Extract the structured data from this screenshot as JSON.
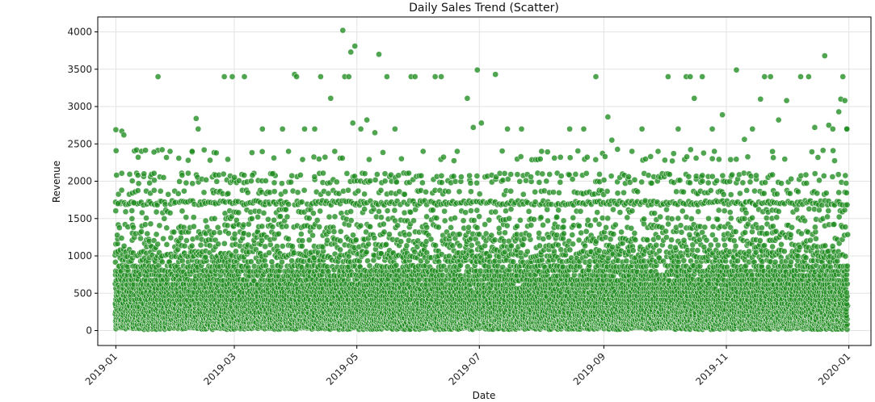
{
  "chart_data": {
    "type": "scatter",
    "title": "Daily Sales Trend (Scatter)",
    "xlabel": "Date",
    "ylabel": "Revenue",
    "x_range": [
      "2018-12-23",
      "2020-01-12"
    ],
    "ylim": [
      -200,
      4200
    ],
    "x_ticks": [
      "2019-01",
      "2019-03",
      "2019-05",
      "2019-07",
      "2019-09",
      "2019-11",
      "2020-01"
    ],
    "y_ticks": [
      0,
      500,
      1000,
      1500,
      2000,
      2500,
      3000,
      3500,
      4000
    ],
    "grid": true,
    "marker_color": "#1f8c1f",
    "marker_edge_color": "#ffffff",
    "points": [
      {
        "x": "2019-01-01",
        "y": 2690
      },
      {
        "x": "2019-01-02",
        "y": 1700
      },
      {
        "x": "2019-01-04",
        "y": 2670
      },
      {
        "x": "2019-01-05",
        "y": 2620
      },
      {
        "x": "2019-01-10",
        "y": 1710
      },
      {
        "x": "2019-01-12",
        "y": 2080
      },
      {
        "x": "2019-01-15",
        "y": 2100
      },
      {
        "x": "2019-01-20",
        "y": 2390
      },
      {
        "x": "2019-01-22",
        "y": 3400
      },
      {
        "x": "2019-01-28",
        "y": 2400
      },
      {
        "x": "2019-02-03",
        "y": 2080
      },
      {
        "x": "2019-02-08",
        "y": 2400
      },
      {
        "x": "2019-02-10",
        "y": 2840
      },
      {
        "x": "2019-02-11",
        "y": 2700
      },
      {
        "x": "2019-02-14",
        "y": 2420
      },
      {
        "x": "2019-02-20",
        "y": 2380
      },
      {
        "x": "2019-02-24",
        "y": 3400
      },
      {
        "x": "2019-02-28",
        "y": 3400
      },
      {
        "x": "2019-03-06",
        "y": 3400
      },
      {
        "x": "2019-03-10",
        "y": 2080
      },
      {
        "x": "2019-03-15",
        "y": 2700
      },
      {
        "x": "2019-03-20",
        "y": 2100
      },
      {
        "x": "2019-03-25",
        "y": 2700
      },
      {
        "x": "2019-03-28",
        "y": 2400
      },
      {
        "x": "2019-03-31",
        "y": 3430
      },
      {
        "x": "2019-04-01",
        "y": 3400
      },
      {
        "x": "2019-04-05",
        "y": 2700
      },
      {
        "x": "2019-04-10",
        "y": 2700
      },
      {
        "x": "2019-04-13",
        "y": 3400
      },
      {
        "x": "2019-04-18",
        "y": 3110
      },
      {
        "x": "2019-04-20",
        "y": 2400
      },
      {
        "x": "2019-04-24",
        "y": 4020
      },
      {
        "x": "2019-04-25",
        "y": 3400
      },
      {
        "x": "2019-04-27",
        "y": 3400
      },
      {
        "x": "2019-04-28",
        "y": 3730
      },
      {
        "x": "2019-04-30",
        "y": 3810
      },
      {
        "x": "2019-04-29",
        "y": 2780
      },
      {
        "x": "2019-05-03",
        "y": 2700
      },
      {
        "x": "2019-05-06",
        "y": 2820
      },
      {
        "x": "2019-05-10",
        "y": 2650
      },
      {
        "x": "2019-05-12",
        "y": 3700
      },
      {
        "x": "2019-05-16",
        "y": 3400
      },
      {
        "x": "2019-05-20",
        "y": 2700
      },
      {
        "x": "2019-05-28",
        "y": 3400
      },
      {
        "x": "2019-05-30",
        "y": 3400
      },
      {
        "x": "2019-06-03",
        "y": 2400
      },
      {
        "x": "2019-06-09",
        "y": 3400
      },
      {
        "x": "2019-06-12",
        "y": 3400
      },
      {
        "x": "2019-06-20",
        "y": 2400
      },
      {
        "x": "2019-06-25",
        "y": 3110
      },
      {
        "x": "2019-06-28",
        "y": 2720
      },
      {
        "x": "2019-06-30",
        "y": 3490
      },
      {
        "x": "2019-07-02",
        "y": 2780
      },
      {
        "x": "2019-07-09",
        "y": 3430
      },
      {
        "x": "2019-07-15",
        "y": 2700
      },
      {
        "x": "2019-07-22",
        "y": 2700
      },
      {
        "x": "2019-08-01",
        "y": 2400
      },
      {
        "x": "2019-08-15",
        "y": 2700
      },
      {
        "x": "2019-08-22",
        "y": 2700
      },
      {
        "x": "2019-08-28",
        "y": 3400
      },
      {
        "x": "2019-09-03",
        "y": 2860
      },
      {
        "x": "2019-09-05",
        "y": 2550
      },
      {
        "x": "2019-09-15",
        "y": 2400
      },
      {
        "x": "2019-09-20",
        "y": 2700
      },
      {
        "x": "2019-09-28",
        "y": 2400
      },
      {
        "x": "2019-10-03",
        "y": 3400
      },
      {
        "x": "2019-10-08",
        "y": 2700
      },
      {
        "x": "2019-10-12",
        "y": 3400
      },
      {
        "x": "2019-10-14",
        "y": 3400
      },
      {
        "x": "2019-10-16",
        "y": 3110
      },
      {
        "x": "2019-10-20",
        "y": 3400
      },
      {
        "x": "2019-10-25",
        "y": 2700
      },
      {
        "x": "2019-10-30",
        "y": 2890
      },
      {
        "x": "2019-11-06",
        "y": 3490
      },
      {
        "x": "2019-11-10",
        "y": 2560
      },
      {
        "x": "2019-11-14",
        "y": 2700
      },
      {
        "x": "2019-11-18",
        "y": 3100
      },
      {
        "x": "2019-11-20",
        "y": 3400
      },
      {
        "x": "2019-11-23",
        "y": 3400
      },
      {
        "x": "2019-11-27",
        "y": 2820
      },
      {
        "x": "2019-12-01",
        "y": 3080
      },
      {
        "x": "2019-12-08",
        "y": 3400
      },
      {
        "x": "2019-12-12",
        "y": 3400
      },
      {
        "x": "2019-12-15",
        "y": 2720
      },
      {
        "x": "2019-12-20",
        "y": 3680
      },
      {
        "x": "2019-12-22",
        "y": 2750
      },
      {
        "x": "2019-12-24",
        "y": 2700
      },
      {
        "x": "2019-12-27",
        "y": 2930
      },
      {
        "x": "2019-12-28",
        "y": 3100
      },
      {
        "x": "2019-12-29",
        "y": 3400
      },
      {
        "x": "2019-12-30",
        "y": 3080
      },
      {
        "x": "2019-12-31",
        "y": 2700
      },
      {
        "x": "2019-12-31",
        "y": 2700
      }
    ],
    "dense_band": {
      "date_start": "2019-01-01",
      "date_end": "2019-12-31",
      "revenue_levels": [
        30,
        60,
        90,
        120,
        150,
        180,
        210,
        250,
        290,
        330,
        370,
        420,
        470,
        520,
        570,
        620,
        680,
        740,
        800,
        860,
        930,
        1000,
        1060,
        1140,
        1220,
        1300,
        1400,
        1500,
        1600,
        1710,
        1850,
        2000,
        2080,
        2300,
        2400
      ],
      "level_density": [
        1,
        1,
        1,
        1,
        1,
        1,
        1,
        1,
        1,
        1,
        1,
        1,
        1,
        0.95,
        0.9,
        0.9,
        0.85,
        0.8,
        0.75,
        0.7,
        0.6,
        0.75,
        0.45,
        0.45,
        0.4,
        0.35,
        0.35,
        0.3,
        0.25,
        0.95,
        0.4,
        0.3,
        0.3,
        0.12,
        0.1
      ]
    }
  }
}
